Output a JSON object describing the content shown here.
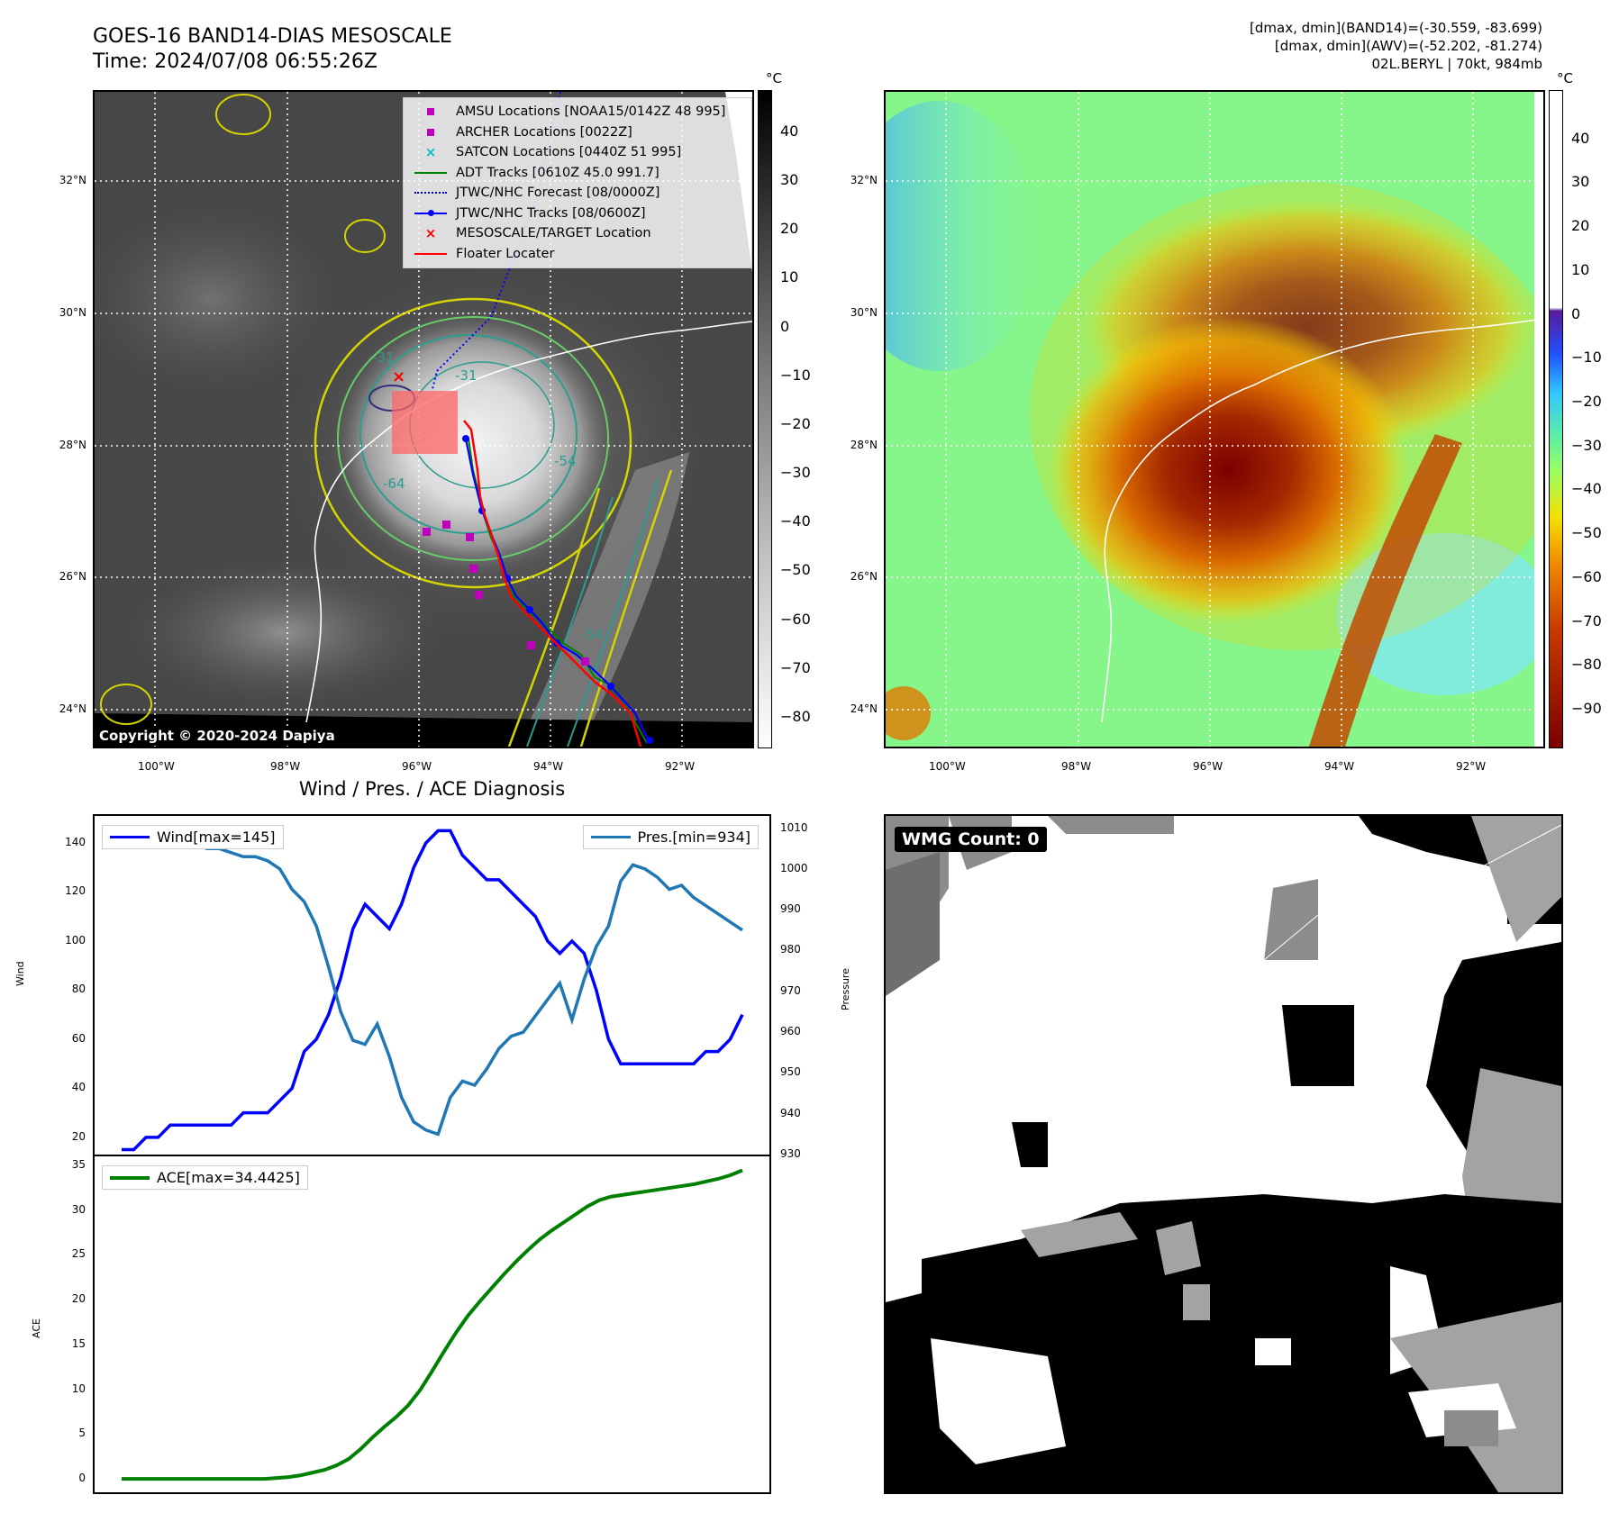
{
  "header": {
    "title_line1": "GOES-16 BAND14-DIAS MESOSCALE",
    "title_line2": "Time: 2024/07/08 06:55:26Z",
    "right_line1": "[dmax, dmin](BAND14)=(-30.559, -83.699)",
    "right_line2": "[dmax, dmin](AWV)=(-52.202, -81.274)",
    "right_line3": "02L.BERYL | 70kt, 984mb"
  },
  "map": {
    "lat_labels": [
      "32°N",
      "30°N",
      "28°N",
      "26°N",
      "24°N"
    ],
    "lon_labels": [
      "100°W",
      "98°W",
      "96°W",
      "94°W",
      "92°W"
    ],
    "contour_labels": [
      "-64",
      "-54",
      "-54",
      "-31",
      "-31"
    ],
    "copyright": "Copyright © 2020-2024 Dapiya"
  },
  "colorbar_left": {
    "unit": "°C",
    "ticks": [
      "40",
      "30",
      "20",
      "10",
      "0",
      "−10",
      "−20",
      "−30",
      "−40",
      "−50",
      "−60",
      "−70",
      "−80"
    ]
  },
  "colorbar_right": {
    "unit": "°C",
    "ticks": [
      "40",
      "30",
      "20",
      "10",
      "0",
      "−10",
      "−20",
      "−30",
      "−40",
      "−50",
      "−60",
      "−70",
      "−80",
      "−90"
    ]
  },
  "legend": [
    {
      "label": "AMSU Locations [NOAA15/0142Z 48 995]",
      "symbol": "square",
      "color": "#bf00bf"
    },
    {
      "label": "ARCHER Locations [0022Z]",
      "symbol": "square",
      "color": "#bf00bf"
    },
    {
      "label": "SATCON Locations [0440Z 51 995]",
      "symbol": "x",
      "color": "#00bfbf"
    },
    {
      "label": "ADT Tracks [0610Z 45.0 991.7]",
      "symbol": "line",
      "color": "#008000"
    },
    {
      "label": "JTWC/NHC Forecast [08/0000Z]",
      "symbol": "dotted",
      "color": "#0000ff"
    },
    {
      "label": "JTWC/NHC Tracks [08/0600Z]",
      "symbol": "linedot",
      "color": "#0000ff"
    },
    {
      "label": "MESOSCALE/TARGET Location",
      "symbol": "x",
      "color": "#ff0000"
    },
    {
      "label": "Floater Locater",
      "symbol": "line",
      "color": "#ff0000"
    }
  ],
  "diagnosis": {
    "title": "Wind / Pres. / ACE Diagnosis",
    "wind_label": "Wind",
    "pressure_label": "Pressure",
    "ace_label": "ACE",
    "wind_legend": "Wind[max=145]",
    "pres_legend": "Pres.[min=934]",
    "ace_legend": "ACE[max=34.4425]",
    "wind_ticks": [
      "140",
      "120",
      "100",
      "80",
      "60",
      "40",
      "20"
    ],
    "pres_ticks": [
      "1010",
      "1000",
      "990",
      "980",
      "970",
      "960",
      "950",
      "940",
      "930"
    ],
    "ace_ticks": [
      "35",
      "30",
      "25",
      "20",
      "15",
      "10",
      "5",
      "0"
    ]
  },
  "wmg": {
    "label": "WMG Count: 0"
  },
  "colors": {
    "wind": "#0000ff",
    "pressure": "#1f77b4",
    "ace": "#008000"
  },
  "chart_data": [
    {
      "type": "line",
      "title": "",
      "series": [
        {
          "name": "Wind[max=145]",
          "axis": "left",
          "values": [
            15,
            15,
            20,
            20,
            25,
            25,
            25,
            25,
            25,
            25,
            30,
            30,
            30,
            35,
            40,
            55,
            60,
            70,
            85,
            105,
            115,
            110,
            105,
            115,
            130,
            140,
            145,
            145,
            135,
            130,
            125,
            125,
            120,
            115,
            110,
            100,
            95,
            100,
            95,
            80,
            60,
            50,
            50,
            50,
            50,
            50,
            50,
            50,
            55,
            55,
            60,
            70
          ]
        },
        {
          "name": "Pres.[min=934]",
          "axis": "right",
          "values": [
            1010,
            1010,
            1009,
            1008,
            1008,
            1007,
            1006,
            1005,
            1005,
            1004,
            1003,
            1003,
            1002,
            1000,
            995,
            992,
            986,
            976,
            965,
            958,
            957,
            962,
            954,
            944,
            938,
            936,
            935,
            944,
            948,
            947,
            951,
            956,
            959,
            960,
            964,
            968,
            972,
            963,
            973,
            981,
            986,
            997,
            1001,
            1000,
            998,
            995,
            996,
            993,
            991,
            989,
            987,
            985
          ]
        }
      ],
      "ylabel": "Wind",
      "ylabel_right": "Pressure",
      "ylim": [
        13,
        151
      ],
      "ylim_right": [
        930,
        1013
      ]
    },
    {
      "type": "line",
      "series": [
        {
          "name": "ACE[max=34.4425]",
          "values": [
            0,
            0,
            0,
            0,
            0,
            0,
            0,
            0,
            0,
            0,
            0,
            0,
            0,
            0.1,
            0.2,
            0.4,
            0.7,
            1.0,
            1.5,
            2.2,
            3.3,
            4.6,
            5.8,
            6.9,
            8.2,
            9.9,
            12.0,
            14.2,
            16.3,
            18.2,
            19.8,
            21.3,
            22.8,
            24.2,
            25.5,
            26.7,
            27.7,
            28.6,
            29.5,
            30.4,
            31.1,
            31.5,
            31.7,
            31.9,
            32.1,
            32.3,
            32.5,
            32.7,
            32.9,
            33.2,
            33.5,
            33.9,
            34.4425
          ]
        }
      ],
      "ylabel": "ACE",
      "ylim": [
        -1.5,
        36
      ]
    }
  ]
}
